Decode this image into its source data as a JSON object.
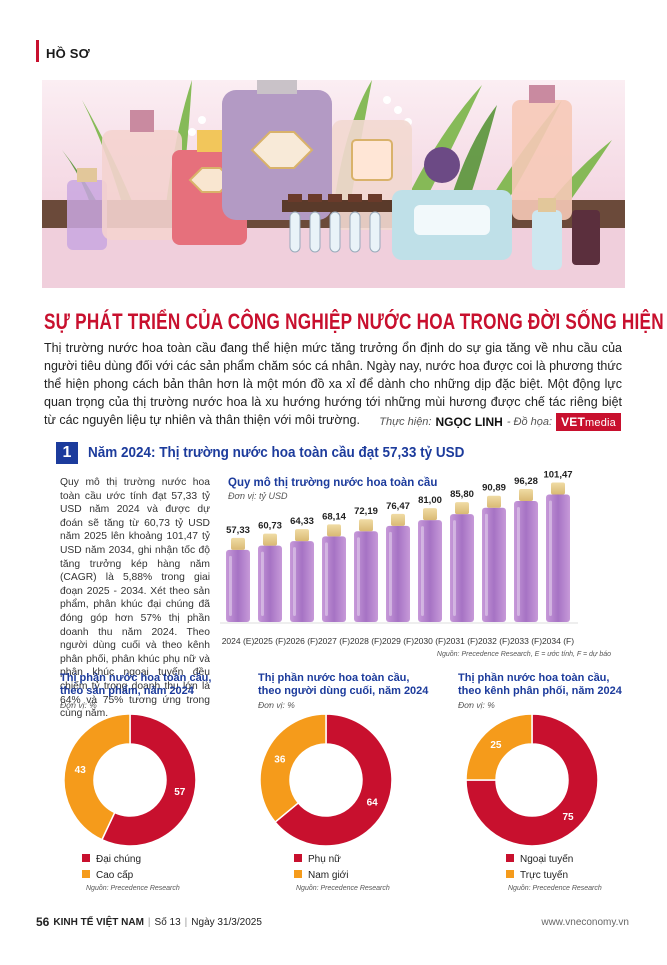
{
  "section_tag": "HỒ SƠ",
  "title": "SỰ PHÁT TRIỂN CỦA CÔNG NGHIỆP NƯỚC HOA TRONG ĐỜI SỐNG HIỆN ĐẠI",
  "intro": "Thị trường nước hoa toàn cầu đang thể hiện mức tăng trưởng ổn định do sự gia tăng về nhu cầu của người tiêu dùng đối với các sản phẩm chăm sóc cá nhân. Ngày nay, nước hoa được coi là phương thức thể hiện phong cách bản thân hơn là một món đồ xa xỉ để dành cho những dịp đặc biệt. Một động lực quan trọng của thị trường nước hoa là xu hướng hướng tới những mùi hương được chế tác riêng biệt từ các nguyên liệu tự nhiên và thân thiện với môi trường.",
  "credit": {
    "label1": "Thực hiện:",
    "author": "NGỌC LINH",
    "label2": "- Đồ họa:",
    "logo_main": "VET",
    "logo_sub": "media"
  },
  "section1": {
    "number": "1",
    "heading": "Năm 2024: Thị trường nước hoa toàn cầu đạt 57,33 tỷ USD",
    "body": "Quy mô thị trường nước hoa toàn cầu ước tính đạt 57,33 tỷ USD năm 2024 và được dự đoán sẽ tăng từ 60,73 tỷ USD năm 2025 lên khoảng 101,47 tỷ USD năm 2034, ghi nhận tốc độ tăng trưởng kép hàng năm (CAGR) là 5,88% trong giai đoạn 2025 - 2034. Xét theo sản phẩm, phân khúc đại chúng đã đóng góp hơn 57% thị phần doanh thu năm 2024. Theo người dùng cuối và theo kênh phân phối, phân khúc phụ nữ và phân khúc ngoại tuyến đều chiếm tỷ trọng doanh thu lớn là 64% và 75% tương ứng trong cùng năm."
  },
  "chart_data": [
    {
      "type": "bar",
      "title": "Quy mô thị trường nước hoa toàn cầu",
      "unit": "Đơn vị: tỷ USD",
      "categories": [
        "2024 (E)",
        "2025 (F)",
        "2026 (F)",
        "2027 (F)",
        "2028 (F)",
        "2029 (F)",
        "2030 (F)",
        "2031 (F)",
        "2032 (F)",
        "2033 (F)",
        "2034 (F)"
      ],
      "values": [
        57.33,
        60.73,
        64.33,
        68.14,
        72.19,
        76.47,
        81.0,
        85.8,
        90.89,
        96.28,
        101.47
      ],
      "value_labels": [
        "57,33",
        "60,73",
        "64,33",
        "68,14",
        "72,19",
        "76,47",
        "81,00",
        "85,80",
        "90,89",
        "96,28",
        "101,47"
      ],
      "note": "Nguồn: Precedence Research, E = ước tính, F = dự báo"
    },
    {
      "type": "pie",
      "title": "Thị phần nước hoa toàn cầu, theo sản phẩm, năm 2024",
      "title_lines": [
        "Thị phần nước hoa toàn cầu,",
        "theo sản phẩm, năm 2024"
      ],
      "unit": "Đơn vị: %",
      "labels": [
        "Đại chúng",
        "Cao cấp"
      ],
      "values": [
        57,
        43
      ],
      "colors": [
        "#c8102e",
        "#f59b1b"
      ],
      "source": "Nguồn: Precedence Research"
    },
    {
      "type": "pie",
      "title": "Thị phần nước hoa toàn cầu, theo người dùng cuối, năm 2024",
      "title_lines": [
        "Thị phần nước hoa toàn cầu,",
        "theo người dùng cuối, năm 2024"
      ],
      "unit": "Đơn vị: %",
      "labels": [
        "Phụ nữ",
        "Nam giới"
      ],
      "values": [
        64,
        36
      ],
      "colors": [
        "#c8102e",
        "#f59b1b"
      ],
      "source": "Nguồn: Precedence Research"
    },
    {
      "type": "pie",
      "title": "Thị phần nước hoa toàn cầu, theo kênh phân phối, năm 2024",
      "title_lines": [
        "Thị phần nước hoa toàn cầu,",
        "theo kênh phân phối, năm 2024"
      ],
      "unit": "Đơn vị: %",
      "labels": [
        "Ngoại tuyến",
        "Trực tuyến"
      ],
      "values": [
        75,
        25
      ],
      "colors": [
        "#c8102e",
        "#f59b1b"
      ],
      "source": "Nguồn: Precedence Research"
    }
  ],
  "footer": {
    "page": "56",
    "publication": "KINH TẾ VIỆT NAM",
    "issue": "Số 13",
    "date": "Ngày 31/3/2025",
    "website": "www.vneconomy.vn"
  },
  "colors": {
    "accent_red": "#c8102e",
    "accent_blue": "#1c3b9c",
    "orange": "#f59b1b",
    "bottle_purple": "#b98ad0"
  }
}
